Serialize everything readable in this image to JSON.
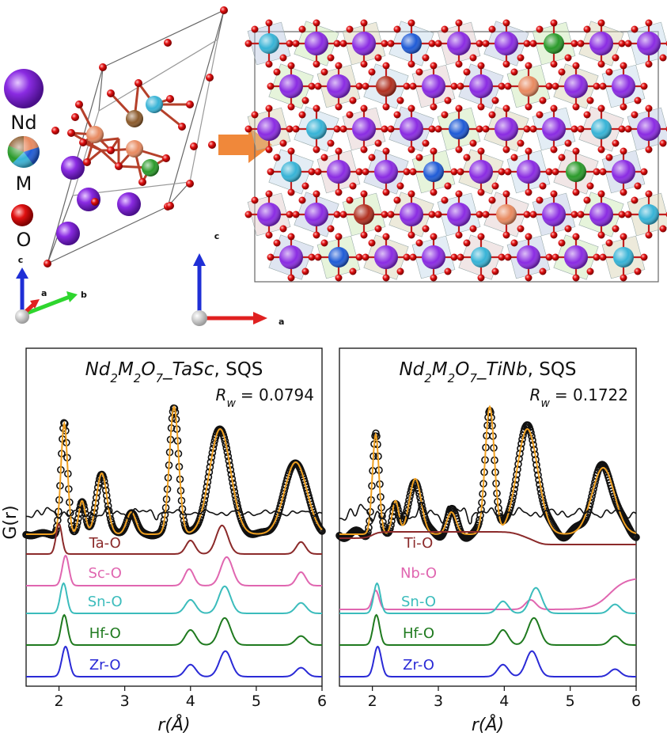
{
  "structure": {
    "legend": [
      {
        "label": "Nd",
        "color": "#8a2be2"
      },
      {
        "label": "M",
        "color": "multicolor"
      },
      {
        "label": "O",
        "color": "#e01010"
      }
    ],
    "axes_left": {
      "c": "c",
      "a": "a",
      "b": "b"
    },
    "axes_right": {
      "c": "c",
      "a": "a"
    },
    "arrow_color": "#f0883a",
    "atom_colors": {
      "Nd": "#8a2be2",
      "O": "#e01010",
      "Zr": "#1f5bd6",
      "Hf": "#2a9a2a",
      "Sn": "#37b3d6",
      "Ta": "#b03020",
      "Sc": "#e88a60"
    }
  },
  "y_axis_label": "G(r)",
  "chart_data": [
    {
      "type": "line",
      "title_formula": "Nd2M2O7_TaSc",
      "title_suffix": ", SQS",
      "rw_label": "R_w",
      "rw_value": "= 0.0794",
      "xlabel": "r(Å)",
      "xlim": [
        1.5,
        6.0
      ],
      "xticks": [
        "2",
        "3",
        "4",
        "5",
        "6"
      ],
      "series": [
        {
          "name": "Ta-O",
          "color": "#8b2a2a",
          "peaks": [
            [
              2.0,
              1.0,
              0.045
            ],
            [
              4.0,
              0.45,
              0.07
            ],
            [
              4.48,
              0.95,
              0.09
            ],
            [
              5.68,
              0.4,
              0.07
            ]
          ]
        },
        {
          "name": "Sc-O",
          "color": "#e066b0",
          "peaks": [
            [
              2.1,
              1.0,
              0.05
            ],
            [
              3.98,
              0.55,
              0.07
            ],
            [
              4.55,
              0.95,
              0.09
            ],
            [
              5.68,
              0.45,
              0.07
            ]
          ]
        },
        {
          "name": "Sn-O",
          "color": "#3bbcbc",
          "peaks": [
            [
              2.07,
              1.0,
              0.05
            ],
            [
              4.0,
              0.45,
              0.08
            ],
            [
              4.52,
              0.9,
              0.09
            ],
            [
              5.68,
              0.35,
              0.08
            ]
          ]
        },
        {
          "name": "Hf-O",
          "color": "#1f7a1f",
          "peaks": [
            [
              2.08,
              1.0,
              0.05
            ],
            [
              4.0,
              0.5,
              0.08
            ],
            [
              4.52,
              0.9,
              0.09
            ],
            [
              5.68,
              0.3,
              0.08
            ]
          ]
        },
        {
          "name": "Zr-O",
          "color": "#2a2ad6",
          "peaks": [
            [
              2.1,
              1.0,
              0.055
            ],
            [
              4.0,
              0.4,
              0.08
            ],
            [
              4.53,
              0.85,
              0.09
            ],
            [
              5.68,
              0.3,
              0.08
            ]
          ]
        }
      ],
      "gfit": [
        [
          2.08,
          1.0,
          0.05
        ],
        [
          2.35,
          0.3,
          0.05
        ],
        [
          2.65,
          0.55,
          0.08
        ],
        [
          3.1,
          0.2,
          0.07
        ],
        [
          3.75,
          1.15,
          0.07
        ],
        [
          4.45,
          0.95,
          0.16
        ],
        [
          5.6,
          0.65,
          0.17
        ]
      ],
      "gfit_baseline": 0.25,
      "difference_amplitude": 1.0
    },
    {
      "type": "line",
      "title_formula": "Nd2M2O7_TiNb",
      "title_suffix": ", SQS",
      "rw_label": "R_w",
      "rw_value": "= 0.1722",
      "xlabel": "r(Å)",
      "xlim": [
        1.5,
        6.0
      ],
      "xticks": [
        "2",
        "3",
        "4",
        "5",
        "6"
      ],
      "series": [
        {
          "name": "Ti-O",
          "color": "#8b2a2a",
          "peaks": []
        },
        {
          "name": "Nb-O",
          "color": "#e066b0",
          "peaks": [
            [
              2.05,
              0.6,
              0.05
            ],
            [
              4.4,
              0.3,
              0.08
            ]
          ]
        },
        {
          "name": "Sn-O",
          "color": "#3bbcbc",
          "peaks": [
            [
              2.07,
              1.0,
              0.05
            ],
            [
              3.98,
              0.4,
              0.08
            ],
            [
              4.48,
              0.85,
              0.09
            ],
            [
              5.68,
              0.3,
              0.08
            ]
          ]
        },
        {
          "name": "Hf-O",
          "color": "#1f7a1f",
          "peaks": [
            [
              2.06,
              1.0,
              0.05
            ],
            [
              3.98,
              0.5,
              0.08
            ],
            [
              4.45,
              0.9,
              0.09
            ],
            [
              5.68,
              0.3,
              0.08
            ]
          ]
        },
        {
          "name": "Zr-O",
          "color": "#2a2ad6",
          "peaks": [
            [
              2.08,
              1.0,
              0.055
            ],
            [
              3.98,
              0.4,
              0.08
            ],
            [
              4.42,
              0.85,
              0.09
            ],
            [
              5.68,
              0.25,
              0.08
            ]
          ]
        }
      ],
      "gfit": [
        [
          2.05,
          0.9,
          0.05
        ],
        [
          2.35,
          0.3,
          0.05
        ],
        [
          2.65,
          0.5,
          0.09
        ],
        [
          3.2,
          0.2,
          0.07
        ],
        [
          3.78,
          1.15,
          0.07
        ],
        [
          4.35,
          0.95,
          0.16
        ],
        [
          5.5,
          0.6,
          0.17
        ]
      ],
      "gfit_baseline": 0.25,
      "difference_amplitude": 1.6
    }
  ]
}
